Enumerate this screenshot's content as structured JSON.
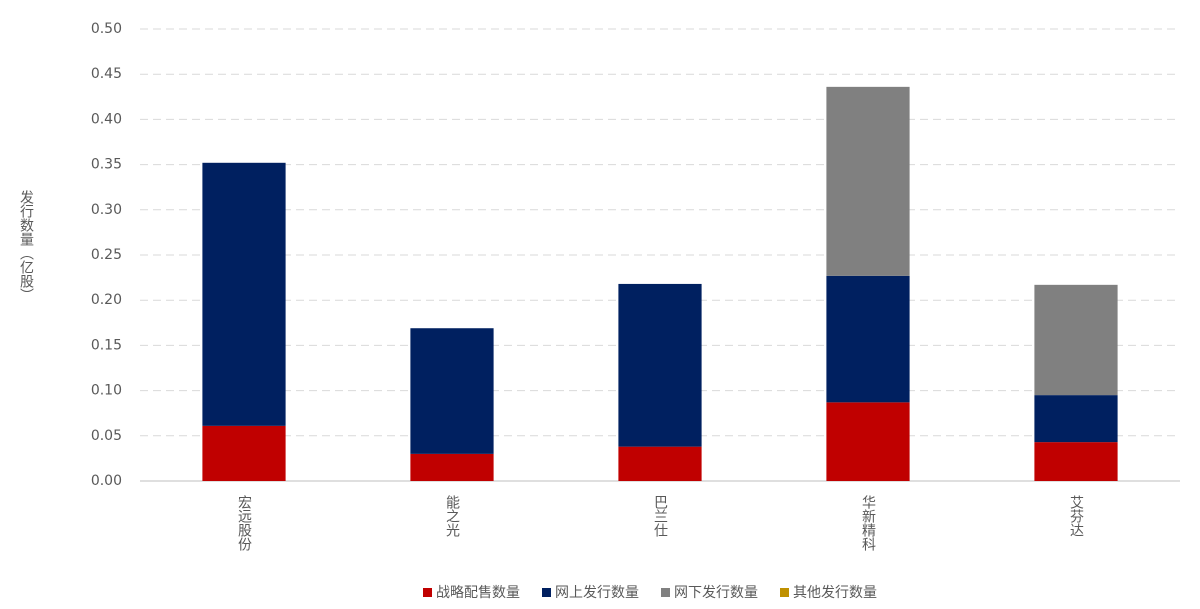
{
  "chart_data": {
    "type": "stacked-bar",
    "y_label": "发行数量（亿股）",
    "categories": [
      "宏远股份",
      "能之光",
      "巴兰仕",
      "华新精科",
      "艾芬达"
    ],
    "series": [
      {
        "name": "战略配售数量",
        "color": "#c00000",
        "values": [
          0.061,
          0.03,
          0.038,
          0.087,
          0.043
        ]
      },
      {
        "name": "网上发行数量",
        "color": "#002060",
        "values": [
          0.291,
          0.139,
          0.18,
          0.14,
          0.052
        ]
      },
      {
        "name": "网下发行数量",
        "color": "#808080",
        "values": [
          0,
          0,
          0,
          0.209,
          0.122
        ]
      },
      {
        "name": "其他发行数量",
        "color": "#bf9000",
        "values": [
          0,
          0,
          0,
          0,
          0
        ]
      }
    ],
    "ylim": [
      0,
      0.5
    ],
    "yticks": [
      {
        "value": 0,
        "label": "0.00"
      },
      {
        "value": 0.05,
        "label": "0.05"
      },
      {
        "value": 0.1,
        "label": "0.10"
      },
      {
        "value": 0.15,
        "label": "0.15"
      },
      {
        "value": 0.2,
        "label": "0.20"
      },
      {
        "value": 0.25,
        "label": "0.25"
      },
      {
        "value": 0.3,
        "label": "0.30"
      },
      {
        "value": 0.35,
        "label": "0.35"
      },
      {
        "value": 0.4,
        "label": "0.40"
      },
      {
        "value": 0.45,
        "label": "0.45"
      },
      {
        "value": 0.5,
        "label": "0.50"
      }
    ],
    "grid": true,
    "legend": "bottom"
  }
}
